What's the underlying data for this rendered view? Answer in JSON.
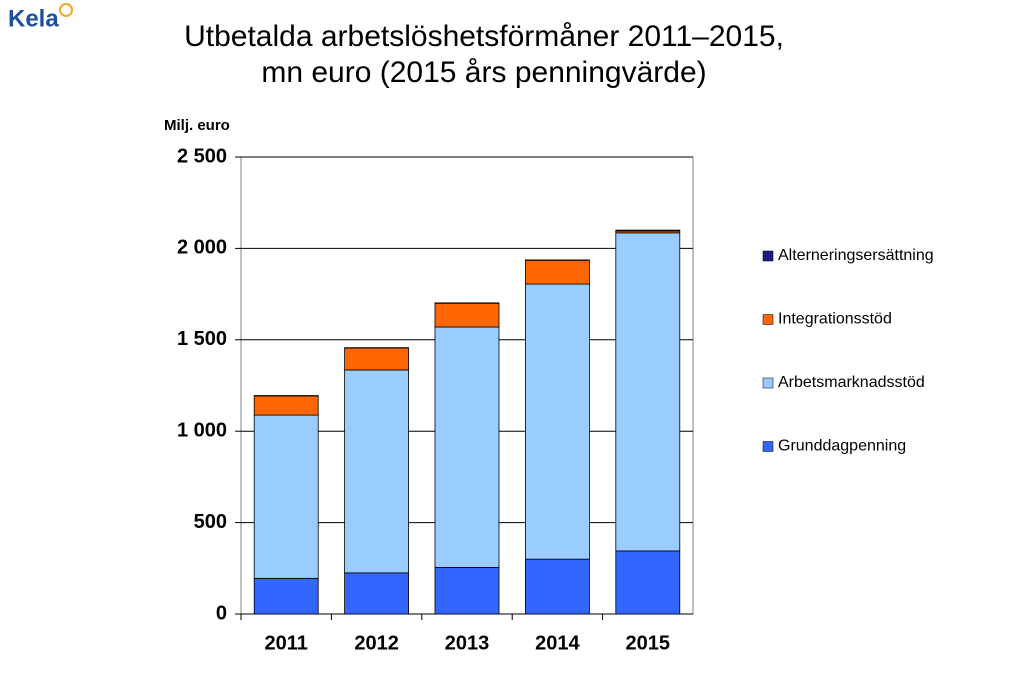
{
  "logo": "Kela",
  "chart_data": {
    "type": "stacked_bar",
    "title": [
      "Utbetalda arbetslöshetsförmåner 2011–2015,",
      "mn euro (2015 års penningvärde)"
    ],
    "ylabel": "Milj. euro",
    "categories": [
      "2011",
      "2012",
      "2013",
      "2014",
      "2015"
    ],
    "series": [
      {
        "name": "Grunddagpenning",
        "color": "#3366ff",
        "values": [
          195,
          225,
          255,
          300,
          345
        ]
      },
      {
        "name": "Arbetsmarknadsstöd",
        "color": "#99ccff",
        "values": [
          893,
          1110,
          1315,
          1505,
          1740
        ]
      },
      {
        "name": "Integrationsstöd",
        "color": "#ff6600",
        "values": [
          105,
          120,
          130,
          130,
          10
        ]
      },
      {
        "name": "Alterneringsersättning",
        "color": "#1a1a80",
        "values": [
          2,
          2,
          2,
          2,
          5
        ]
      }
    ],
    "ylim": [
      0,
      2500
    ],
    "yticks": [
      0,
      500,
      {
        "value": 1000,
        "label": "1 000"
      },
      {
        "value": 1500,
        "label": "1 500"
      },
      {
        "value": 2000,
        "label": "2 000"
      },
      {
        "value": 2500,
        "label": "2 500"
      }
    ],
    "grid": true,
    "legend": "right"
  }
}
